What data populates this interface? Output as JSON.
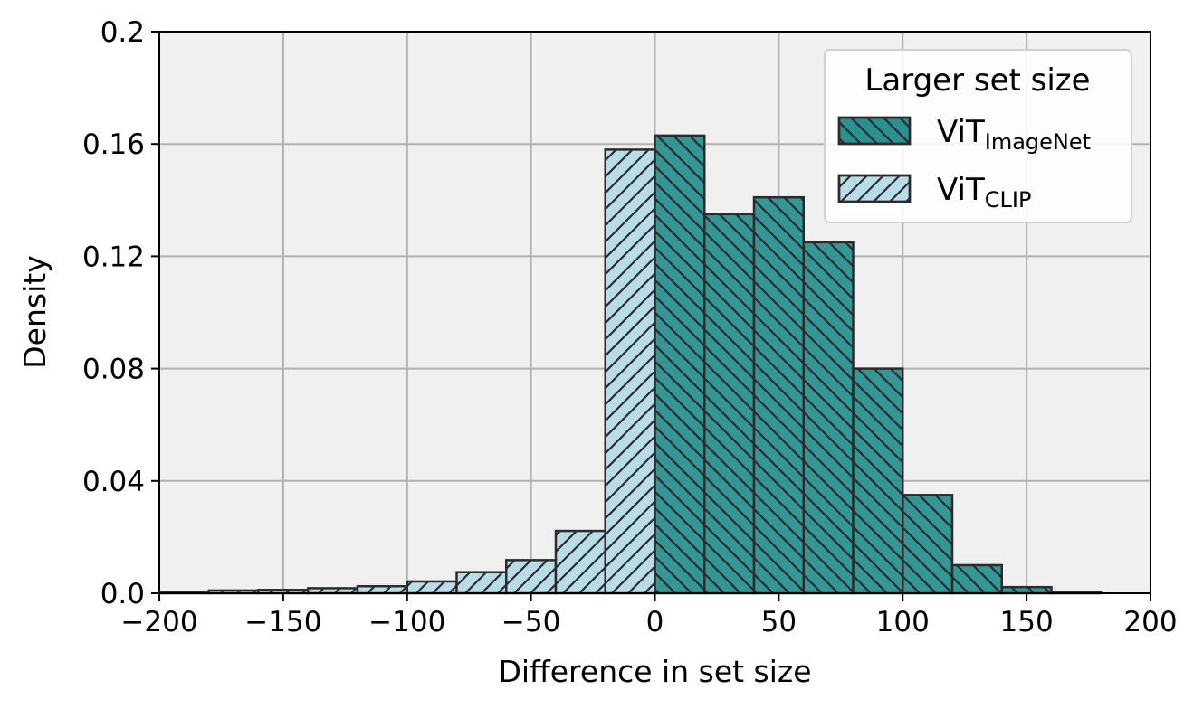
{
  "chart_data": {
    "type": "bar",
    "title": "",
    "xlabel": "Difference in set size",
    "ylabel": "Density",
    "xlim": [
      -200,
      200
    ],
    "ylim": [
      0,
      0.2
    ],
    "xticks": [
      -200,
      -150,
      -100,
      -50,
      0,
      50,
      100,
      150,
      200
    ],
    "xtick_labels": [
      "−200",
      "−150",
      "−100",
      "−50",
      "0",
      "50",
      "100",
      "150",
      "200"
    ],
    "yticks": [
      0,
      0.04,
      0.08,
      0.12,
      0.16,
      0.2
    ],
    "ytick_labels": [
      "0.0",
      "0.04",
      "0.08",
      "0.12",
      "0.16",
      "0.2"
    ],
    "grid": true,
    "legend": {
      "title": "Larger set size",
      "position": "top-right"
    },
    "series": [
      {
        "name": "ViT",
        "name_subscript": "ImageNet",
        "color": "#2a9090",
        "hatch": "backslash",
        "bins": [
          {
            "x0": 0,
            "x1": 20,
            "value": 0.163
          },
          {
            "x0": 20,
            "x1": 40,
            "value": 0.135
          },
          {
            "x0": 40,
            "x1": 60,
            "value": 0.141
          },
          {
            "x0": 60,
            "x1": 80,
            "value": 0.125
          },
          {
            "x0": 80,
            "x1": 100,
            "value": 0.08
          },
          {
            "x0": 100,
            "x1": 120,
            "value": 0.035
          },
          {
            "x0": 120,
            "x1": 140,
            "value": 0.01
          },
          {
            "x0": 140,
            "x1": 160,
            "value": 0.0022
          },
          {
            "x0": 160,
            "x1": 180,
            "value": 0.0004
          }
        ]
      },
      {
        "name": "ViT",
        "name_subscript": "CLIP",
        "color": "#b9dde8",
        "hatch": "slash",
        "bins": [
          {
            "x0": -200,
            "x1": -180,
            "value": 0.0005
          },
          {
            "x0": -180,
            "x1": -160,
            "value": 0.001
          },
          {
            "x0": -160,
            "x1": -140,
            "value": 0.0012
          },
          {
            "x0": -140,
            "x1": -120,
            "value": 0.0018
          },
          {
            "x0": -120,
            "x1": -100,
            "value": 0.0025
          },
          {
            "x0": -100,
            "x1": -80,
            "value": 0.0042
          },
          {
            "x0": -80,
            "x1": -60,
            "value": 0.0075
          },
          {
            "x0": -60,
            "x1": -40,
            "value": 0.0118
          },
          {
            "x0": -40,
            "x1": -20,
            "value": 0.0222
          },
          {
            "x0": -20,
            "x1": 0,
            "value": 0.158
          }
        ]
      }
    ]
  }
}
